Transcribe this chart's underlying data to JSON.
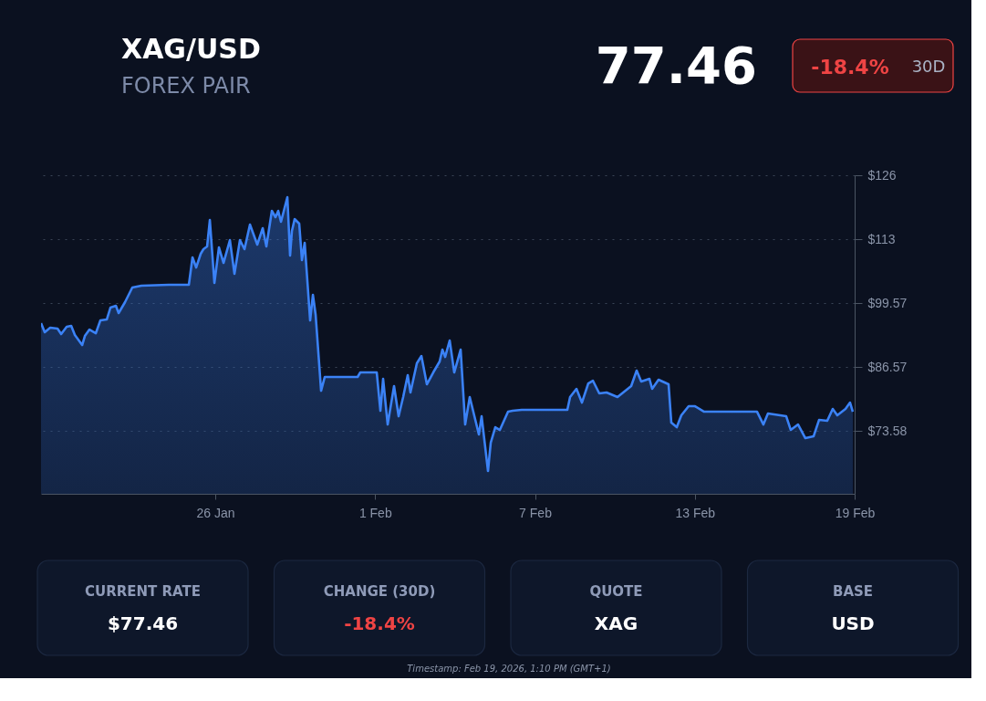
{
  "chart_data": [
    {
      "type": "area",
      "title": "XAG/USD",
      "subtitle": "FOREX PAIR",
      "annotations": [
        "77.46",
        "-18.4%",
        "30D"
      ],
      "color": "#3b82f6",
      "grid": "y",
      "xlim": [
        "2026-01-19T11:00",
        "2026-02-19"
      ],
      "xticks": [
        {
          "value": "2026-01-26",
          "label": "26 Jan"
        },
        {
          "value": "2026-02-01",
          "label": "1 Feb"
        },
        {
          "value": "2026-02-07",
          "label": "7 Feb"
        },
        {
          "value": "2026-02-13",
          "label": "13 Feb"
        },
        {
          "value": "2026-02-19",
          "label": "19 Feb"
        }
      ],
      "ylim": [
        60.77,
        125.57
      ],
      "yticks": [
        {
          "value": 73.58,
          "label": "$73.58"
        },
        {
          "value": 86.57,
          "label": "$86.57"
        },
        {
          "value": 99.57,
          "label": "$99.57"
        },
        {
          "value": 112.57,
          "label": "$113"
        },
        {
          "value": 125.57,
          "label": "$126"
        }
      ],
      "x": [
        "2026-01-19T11:00",
        "2026-01-19T14:20",
        "2026-01-19T19:15",
        "2026-01-20T01:50",
        "2026-01-20T05:08",
        "2026-01-20T10:05",
        "2026-01-20T14:11",
        "2026-01-20T17:28",
        "2026-01-21T00:03",
        "2026-01-21T02:30",
        "2026-01-21T06:37",
        "2026-01-21T12:22",
        "2026-01-21T16:28",
        "2026-01-21T22:13",
        "2026-01-22T01:30",
        "2026-01-22T06:26",
        "2026-01-22T08:54",
        "2026-01-22T14:40",
        "2026-01-22T21:14",
        "2026-01-23T05:27",
        "2026-01-24T06:06",
        "2026-01-25T00:10",
        "2026-01-25T03:27",
        "2026-01-25T06:45",
        "2026-01-25T10:51",
        "2026-01-25T13:19",
        "2026-01-25T16:36",
        "2026-01-25T19:04",
        "2026-01-25T23:11",
        "2026-01-26T03:17",
        "2026-01-26T07:24",
        "2026-01-26T13:08",
        "2026-01-26T17:15",
        "2026-01-26T22:11",
        "2026-01-27T02:18",
        "2026-01-27T07:13",
        "2026-01-27T13:48",
        "2026-01-27T18:43",
        "2026-01-27T22:00",
        "2026-01-28T02:57",
        "2026-01-28T06:14",
        "2026-01-28T08:41",
        "2026-01-28T11:10",
        "2026-01-28T16:55",
        "2026-01-28T19:22",
        "2026-01-28T21:01",
        "2026-01-28T23:28",
        "2026-01-29T03:36",
        "2026-01-29T06:03",
        "2026-01-29T08:31",
        "2026-01-29T13:26",
        "2026-01-29T15:55",
        "2026-01-29T18:23",
        "2026-01-29T23:18",
        "2026-01-30T02:36",
        "2026-01-31T08:11",
        "2026-01-31T10:38",
        "2026-02-01T01:26",
        "2026-02-01T04:44",
        "2026-02-01T07:11",
        "2026-02-01T11:17",
        "2026-02-01T17:02",
        "2026-02-01T21:09",
        "2026-02-02T01:15",
        "2026-02-02T05:21",
        "2026-02-02T07:49",
        "2026-02-02T13:35",
        "2026-02-02T17:41",
        "2026-02-02T22:36",
        "2026-02-03T04:22",
        "2026-02-03T10:07",
        "2026-02-03T12:35",
        "2026-02-03T15:03",
        "2026-02-03T19:09",
        "2026-02-03T23:15",
        "2026-02-04T05:01",
        "2026-02-04T09:07",
        "2026-02-04T13:13",
        "2026-02-04T21:27",
        "2026-02-04T23:56",
        "2026-02-05T05:40",
        "2026-02-05T08:08",
        "2026-02-05T12:14",
        "2026-02-05T16:21",
        "2026-02-05T23:45",
        "2026-02-06T03:52",
        "2026-02-06T12:04",
        "2026-02-08T05:10",
        "2026-02-08T07:37",
        "2026-02-08T13:22",
        "2026-02-08T18:17",
        "2026-02-09T00:03",
        "2026-02-09T04:09",
        "2026-02-09T09:55",
        "2026-02-09T16:29",
        "2026-02-10T02:21",
        "2026-02-10T14:40",
        "2026-02-10T19:36",
        "2026-02-10T23:43",
        "2026-02-11T07:06",
        "2026-02-11T09:34",
        "2026-02-11T15:19",
        "2026-02-12T00:22",
        "2026-02-12T02:49",
        "2026-02-12T07:45",
        "2026-02-12T11:51",
        "2026-02-12T18:26",
        "2026-02-13T00:12",
        "2026-02-13T08:24",
        "2026-02-13T16:37",
        "2026-02-15T08:04",
        "2026-02-15T13:48",
        "2026-02-15T17:54",
        "2026-02-16T10:21",
        "2026-02-16T14:27",
        "2026-02-16T21:01",
        "2026-02-17T03:36",
        "2026-02-17T10:59",
        "2026-02-17T15:55",
        "2026-02-17T23:18",
        "2026-02-18T04:15",
        "2026-02-18T08:21",
        "2026-02-18T15:45",
        "2026-02-18T19:51",
        "2026-02-18T22:19"
      ],
      "values": [
        95.49,
        93.63,
        94.56,
        94.37,
        93.26,
        94.74,
        94.93,
        93.07,
        91.03,
        92.89,
        94.19,
        93.44,
        96.04,
        96.23,
        98.64,
        99.01,
        97.53,
        99.76,
        102.73,
        103.1,
        103.29,
        103.29,
        108.86,
        106.81,
        109.6,
        110.53,
        111.08,
        116.47,
        103.66,
        110.9,
        107.74,
        112.38,
        105.51,
        112.38,
        110.53,
        115.54,
        111.46,
        114.8,
        111.08,
        118.33,
        117.03,
        118.33,
        116.1,
        121.11,
        109.23,
        114.24,
        116.66,
        115.73,
        108.3,
        111.83,
        96.04,
        101.24,
        97.16,
        81.74,
        84.53,
        84.53,
        85.46,
        85.46,
        77.66,
        84.16,
        74.87,
        82.67,
        76.54,
        80.44,
        84.9,
        81.37,
        87.31,
        88.8,
        83.04,
        85.46,
        87.69,
        90.1,
        88.61,
        91.96,
        85.46,
        90.1,
        74.87,
        80.44,
        72.83,
        76.54,
        65.4,
        71.16,
        74.31,
        73.76,
        77.47,
        77.66,
        77.84,
        77.84,
        80.44,
        82.12,
        79.33,
        83.23,
        83.79,
        81.19,
        81.37,
        80.44,
        82.67,
        85.83,
        83.6,
        84.16,
        82.12,
        83.97,
        83.04,
        75.24,
        74.31,
        76.73,
        78.59,
        78.59,
        77.47,
        77.47,
        77.47,
        74.87,
        77.1,
        76.54,
        73.76,
        74.87,
        72.09,
        72.46,
        75.8,
        75.61,
        78.03,
        76.73,
        78.03,
        79.33,
        77.46
      ]
    },
    {
      "type": "other",
      "annotations": [
        "CURRENT RATE",
        "$77.46",
        "CHANGE (30D)",
        "-18.4%",
        "QUOTE",
        "XAG",
        "BASE",
        "USD",
        "Timestamp: Feb 19, 2026, 1:10 PM (GMT+1)"
      ]
    }
  ]
}
